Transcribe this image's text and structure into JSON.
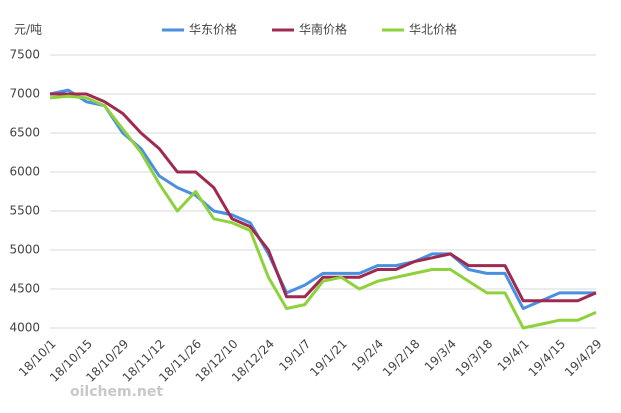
{
  "chart_data": {
    "type": "line",
    "y_label": "元/吨",
    "watermark": "oilchem.net",
    "categories": [
      "18/10/1",
      null,
      "18/10/15",
      null,
      "18/10/29",
      null,
      "18/11/12",
      null,
      "18/11/26",
      null,
      "18/12/10",
      null,
      "18/12/24",
      null,
      "19/1/7",
      null,
      "19/1/21",
      null,
      "19/2/4",
      null,
      "19/2/18",
      null,
      "19/3/4",
      null,
      "19/3/18",
      null,
      "19/4/1",
      null,
      "19/4/15",
      null,
      "19/4/29"
    ],
    "series": [
      {
        "name": "华东价格",
        "color": "#4a8fe0",
        "values": [
          7000,
          7050,
          6900,
          6850,
          6500,
          6300,
          5950,
          5800,
          5700,
          5500,
          5450,
          5350,
          4950,
          4450,
          4550,
          4700,
          4700,
          4700,
          4800,
          4800,
          4850,
          4950,
          4950,
          4750,
          4700,
          4700,
          4250,
          4350,
          4450,
          4450,
          4450
        ]
      },
      {
        "name": "华南价格",
        "color": "#a0294f",
        "values": [
          7000,
          7000,
          7000,
          6900,
          6750,
          6500,
          6300,
          6000,
          6000,
          5800,
          5400,
          5300,
          5000,
          4400,
          4400,
          4650,
          4650,
          4650,
          4750,
          4750,
          4850,
          4900,
          4950,
          4800,
          4800,
          4800,
          4350,
          4350,
          4350,
          4350,
          4450
        ]
      },
      {
        "name": "华北价格",
        "color": "#8ed13c",
        "values": [
          6950,
          6970,
          6950,
          6850,
          6550,
          6250,
          5850,
          5500,
          5750,
          5400,
          5350,
          5250,
          4650,
          4250,
          4300,
          4600,
          4650,
          4500,
          4600,
          4650,
          4700,
          4750,
          4750,
          4600,
          4450,
          4450,
          4000,
          4050,
          4100,
          4100,
          4200
        ]
      }
    ],
    "ylim": [
      4000,
      7500
    ],
    "yticks": [
      4000,
      4500,
      5000,
      5500,
      6000,
      6500,
      7000,
      7500
    ],
    "grid": true,
    "legend": "top"
  }
}
